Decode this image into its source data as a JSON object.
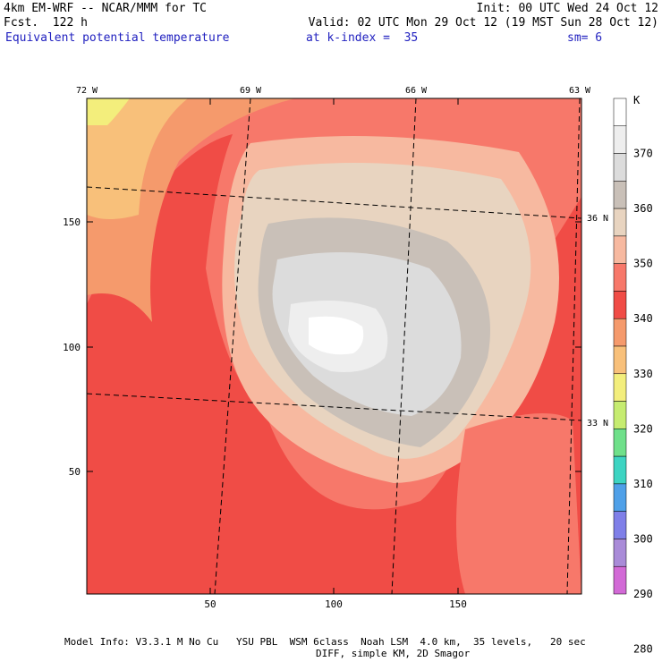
{
  "header": {
    "model": "4km EM-WRF -- NCAR/MMM for TC",
    "forecast": "Fcst.  122 h",
    "init": "Init: 00 UTC Wed 24 Oct 12",
    "valid": "Valid: 02 UTC Mon 29 Oct 12 (19 MST Sun 28 Oct 12)",
    "field": "Equivalent potential temperature",
    "level": "at k-index =  35",
    "smoothing": "sm= 6"
  },
  "map": {
    "x_ticks": [
      "50",
      "100",
      "150"
    ],
    "y_ticks": [
      "50",
      "100",
      "150"
    ],
    "lon_labels": [
      "72 W",
      "69 W",
      "66 W",
      "63 W"
    ],
    "lat_labels": [
      "36 N",
      "33 N"
    ]
  },
  "colorbar": {
    "unit": "K",
    "levels": [
      "370",
      "360",
      "350",
      "340",
      "330",
      "320",
      "310",
      "300",
      "290",
      "280"
    ],
    "colors": [
      "#ffffff",
      "#eeeeee",
      "#dcdcdc",
      "#c9c0b8",
      "#e8d4c0",
      "#f7b9a0",
      "#f7786a",
      "#f04c46",
      "#f59a6c",
      "#f8c07a",
      "#f3ee7c",
      "#c6ec70",
      "#6fe08a",
      "#3dd4c2",
      "#4fa0e8",
      "#7f7fe8",
      "#a98bd8",
      "#d26ad6"
    ]
  },
  "footer": {
    "line1": "Model Info: V3.3.1 M No Cu   YSU PBL  WSM 6class  Noah LSM  4.0 km,  35 levels,   20 sec",
    "line2": "DIFF, simple KM, 2D Smagor"
  }
}
